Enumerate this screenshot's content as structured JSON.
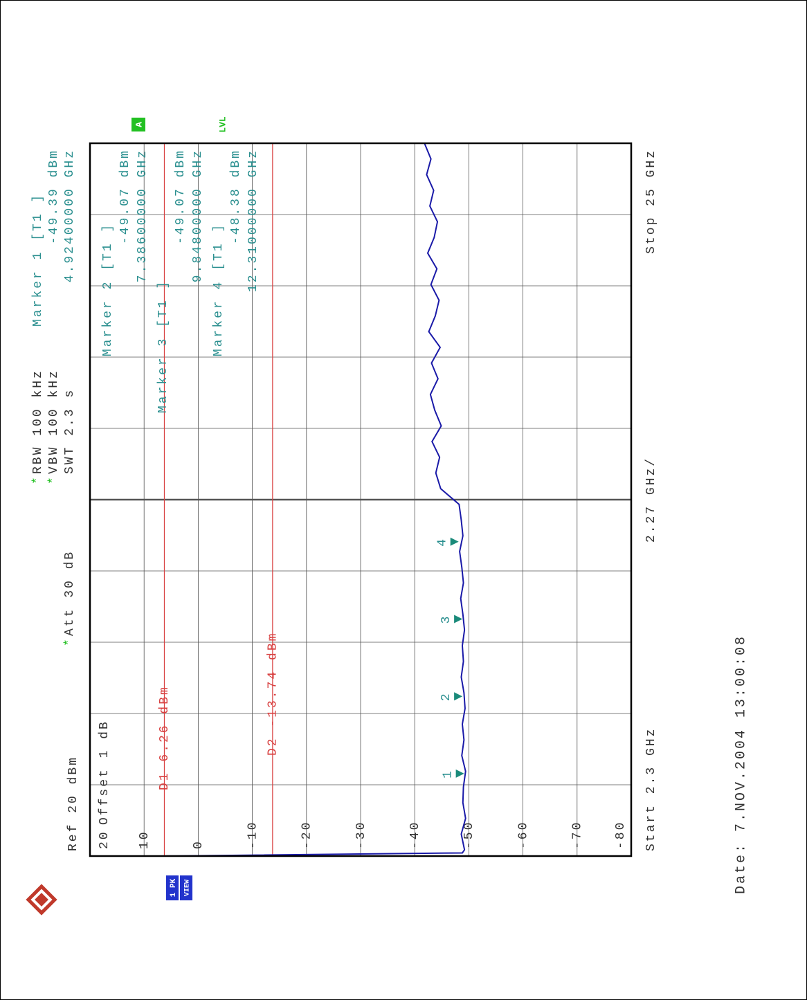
{
  "chart_data": {
    "type": "line",
    "header": {
      "ref": "Ref 20 dBm",
      "att": "Att 30 dB",
      "rbw": "RBW 100 kHz",
      "vbw": "VBW 100 kHz",
      "swt": "SWT 2.3 s",
      "offset": "Offset 1 dB",
      "coupled_mark": "*",
      "trace_mode": "1 PK",
      "view": "VIEW",
      "badge": "A",
      "level": "LVL"
    },
    "start_label": "Start 2.3 GHz",
    "span_label": "2.27 GHz/",
    "stop_label": "Stop 25 GHz",
    "date": "Date: 7.NOV.2004  13:00:08",
    "xlim": [
      2.3,
      25
    ],
    "ylim": [
      -80,
      20
    ],
    "yticks": [
      20,
      10,
      0,
      -10,
      -20,
      -30,
      -40,
      -50,
      -60,
      -70,
      -80
    ],
    "grid": true,
    "display_lines": [
      {
        "label": "D1 6.26 dBm",
        "value": 6.26,
        "color": "#d84040"
      },
      {
        "label": "D2 -13.74 dBm",
        "value": -13.74,
        "color": "#d84040"
      }
    ],
    "markers": [
      {
        "id": "1",
        "name": "Marker 1 [T1 ]",
        "x": 4.924,
        "x_label": "4.92400000 GHz",
        "value": -49.39,
        "value_label": "-49.39 dBm"
      },
      {
        "id": "2",
        "name": "Marker 2 [T1 ]",
        "x": 7.386,
        "x_label": "7.38600000 GHz",
        "value": -49.07,
        "value_label": "-49.07 dBm"
      },
      {
        "id": "3",
        "name": "Marker 3 [T1 ]",
        "x": 9.848,
        "x_label": "9.84800000 GHz",
        "value": -49.07,
        "value_label": "-49.07 dBm"
      },
      {
        "id": "4",
        "name": "Marker 4 [T1 ]",
        "x": 12.31,
        "x_label": "12.31000000 GHz",
        "value": -48.38,
        "value_label": "-48.38 dBm"
      }
    ],
    "x": [
      2.3,
      2.4,
      2.5,
      3,
      3.5,
      4,
      4.5,
      5,
      5.5,
      6,
      6.5,
      7,
      7.5,
      8,
      8.5,
      9,
      9.5,
      10,
      10.5,
      11,
      11.5,
      12,
      12.5,
      13,
      13.5,
      14,
      14.5,
      15,
      15.5,
      16,
      16.5,
      17,
      17.5,
      18,
      18.5,
      19,
      19.5,
      20,
      20.5,
      21,
      21.5,
      22,
      22.5,
      23,
      23.5,
      24,
      24.5,
      25
    ],
    "series": [
      {
        "name": "1 PK",
        "color": "#1a1aa8",
        "values": [
          6.3,
          -48.8,
          -49.2,
          -48.6,
          -49.4,
          -48.9,
          -49.0,
          -49.4,
          -48.7,
          -49.1,
          -48.8,
          -49.3,
          -49.1,
          -48.6,
          -49.0,
          -48.8,
          -49.2,
          -48.9,
          -48.5,
          -49.0,
          -48.7,
          -48.3,
          -48.9,
          -48.6,
          -48.2,
          -44.8,
          -43.9,
          -44.6,
          -43.2,
          -44.9,
          -43.7,
          -42.9,
          -44.3,
          -43.1,
          -44.7,
          -42.6,
          -43.8,
          -44.5,
          -43.0,
          -44.1,
          -42.4,
          -43.6,
          -44.2,
          -42.8,
          -43.5,
          -42.2,
          -43.0,
          -41.8
        ]
      }
    ]
  }
}
